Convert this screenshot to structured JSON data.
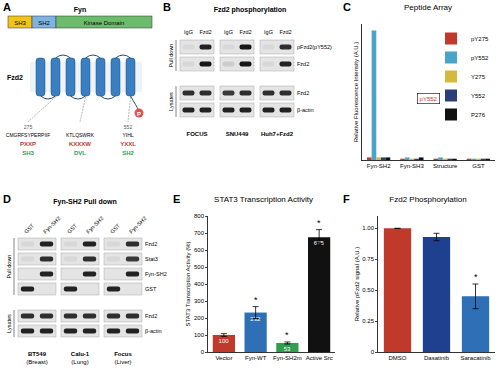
{
  "panels": {
    "A": {
      "letter": "A",
      "protein": "Fyn",
      "domains": [
        "SH3",
        "SH2",
        "Kinase Domain"
      ],
      "receptor": "Fzd2",
      "phospho_mark": "P",
      "motifs": [
        {
          "residue": "275",
          "sequence": "CMGRFSYPERPIIF",
          "motif": "PXXP",
          "binder": "SH3"
        },
        {
          "sequence": "KTLQSWRK",
          "motif": "KXXXW",
          "binder": "DVL"
        },
        {
          "residue": "552",
          "sequence": "YIHL",
          "motif": "YXXL",
          "binder": "SH2"
        }
      ]
    },
    "B": {
      "letter": "B",
      "title": "Fzd2 phosphorylation",
      "lanes": [
        "IgG",
        "Fzd2"
      ],
      "cell_lines": [
        [
          "FOCUS"
        ],
        [
          "SNU449"
        ],
        [
          "Huh7+Fzd2"
        ]
      ],
      "groups": [
        {
          "name": "Pull down",
          "rows": [
            {
              "label": "pFzd2(pY552)",
              "bands": [
                [
                  0.05,
                  0.85
                ],
                [
                  0.05,
                  0.9
                ],
                [
                  0.05,
                  0.8
                ]
              ]
            },
            {
              "label": "Fzd2",
              "bands": [
                [
                  0.05,
                  0.9
                ],
                [
                  0.1,
                  0.9
                ],
                [
                  0.05,
                  0.85
                ]
              ]
            }
          ]
        },
        {
          "name": "Lysates",
          "rows": [
            {
              "label": "Fzd2",
              "bands": [
                [
                  0.8,
                  0.8
                ],
                [
                  0.75,
                  0.8
                ],
                [
                  0.8,
                  0.8
                ]
              ]
            },
            {
              "label": "β-actin",
              "bands": [
                [
                  0.85,
                  0.85
                ],
                [
                  0.85,
                  0.85
                ],
                [
                  0.85,
                  0.85
                ]
              ]
            }
          ]
        }
      ]
    },
    "D": {
      "letter": "D",
      "title": "Fyn-SH2 Pull down",
      "lanes": [
        "GST",
        "Fyn-SH2"
      ],
      "cell_lines": [
        [
          "BT549",
          "(Breast)"
        ],
        [
          "Calu-1",
          "(Lung)"
        ],
        [
          "Focus",
          "(Liver)"
        ]
      ],
      "groups": [
        {
          "name": "Pull down",
          "rows": [
            {
              "label": "Fzd2",
              "bands": [
                [
                  0.05,
                  0.85
                ],
                [
                  0.05,
                  0.85
                ],
                [
                  0.05,
                  0.8
                ]
              ]
            },
            {
              "label": "Stat3",
              "bands": [
                [
                  0.05,
                  0.8
                ],
                [
                  0.05,
                  0.8
                ],
                [
                  0.05,
                  0.75
                ]
              ]
            },
            {
              "label": "Fyn-SH2",
              "bands": [
                [
                  0.0,
                  0.85
                ],
                [
                  0.0,
                  0.85
                ],
                [
                  0.0,
                  0.85
                ]
              ]
            },
            {
              "label": "GST",
              "bands": [
                [
                  0.85,
                  0.0
                ],
                [
                  0.85,
                  0.0
                ],
                [
                  0.85,
                  0.0
                ]
              ]
            }
          ]
        },
        {
          "name": "Lysates",
          "rows": [
            {
              "label": "Fzd2",
              "bands": [
                [
                  0.8,
                  0.8
                ],
                [
                  0.8,
                  0.8
                ],
                [
                  0.8,
                  0.8
                ]
              ]
            },
            {
              "label": "β-actin",
              "bands": [
                [
                  0.85,
                  0.85
                ],
                [
                  0.85,
                  0.85
                ],
                [
                  0.85,
                  0.85
                ]
              ]
            }
          ]
        }
      ]
    }
  },
  "chart_data": [
    {
      "panel": "C",
      "type": "bar",
      "title": "Peptide Array",
      "y_label": "Relative Fluorescence Intensity (A.U.)",
      "categories": [
        "Fyn-SH2",
        "Fyn-SH3",
        "Structure",
        "GST"
      ],
      "series": [
        {
          "name": "pY275",
          "color": "#c0392b",
          "values": [
            0.02,
            0.01,
            0.01,
            0.01
          ]
        },
        {
          "name": "pY552",
          "color": "#4aa3c8",
          "values": [
            1.0,
            0.02,
            0.02,
            0.01
          ]
        },
        {
          "name": "Y275",
          "color": "#d4b93c",
          "values": [
            0.02,
            0.01,
            0.01,
            0.01
          ]
        },
        {
          "name": "Y552",
          "color": "#2c3e7a",
          "values": [
            0.02,
            0.01,
            0.01,
            0.01
          ]
        },
        {
          "name": "P276",
          "color": "#111111",
          "values": [
            0.02,
            0.02,
            0.01,
            0.01
          ]
        }
      ],
      "ylim": [
        0,
        1.05
      ],
      "tick_labels": "x",
      "grid": false,
      "legend": "top right",
      "annotations": [
        "pY552"
      ]
    },
    {
      "panel": "E",
      "type": "bar",
      "title": "STAT3 Transcription Activity",
      "y_label": "STAT3 Transcription Activity (%)",
      "categories": [
        "Vector",
        "Fyn-WT",
        "Fyn-SH2m",
        "Active Src"
      ],
      "values": [
        100,
        232,
        53,
        675
      ],
      "errors": [
        8,
        35,
        6,
        45
      ],
      "colors": [
        "#c0392b",
        "#2f6fb5",
        "#2e9e4f",
        "#111111"
      ],
      "significance": [
        null,
        "*",
        "*",
        "*"
      ],
      "ylim": [
        0,
        800
      ],
      "yticks": [
        0,
        100,
        200,
        300,
        400,
        500,
        600,
        700,
        800
      ],
      "data_labels": true,
      "grid": false
    },
    {
      "panel": "F",
      "type": "bar",
      "title": "Fzd2 Phosphorylation",
      "y_label": "Relative pFzd2 signal (A.U.)",
      "categories": [
        "DMSO",
        "Dasatinib",
        "Saracatinib"
      ],
      "values": [
        1.0,
        0.93,
        0.45
      ],
      "errors": [
        0,
        0.03,
        0.1
      ],
      "colors": [
        "#c0392b",
        "#1f3f8f",
        "#2f6fb5"
      ],
      "significance": [
        null,
        null,
        "*"
      ],
      "ylim": [
        0,
        1.1
      ],
      "yticks": [
        0,
        0.25,
        {
          "value": 0.5,
          "label": "0.50"
        },
        0.75,
        {
          "value": 1,
          "label": "1.00"
        }
      ],
      "grid": false
    }
  ]
}
